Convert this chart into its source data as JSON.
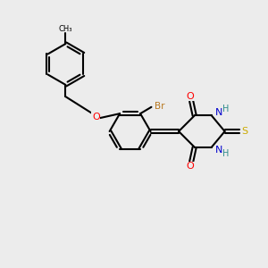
{
  "background_color": "#ececec",
  "bond_color": "#000000",
  "atom_colors": {
    "O": "#ff0000",
    "N": "#0000cd",
    "S": "#ccaa00",
    "Br": "#b87820",
    "H": "#2e8b8b",
    "C": "#000000"
  },
  "figsize": [
    3.0,
    3.0
  ],
  "dpi": 100
}
